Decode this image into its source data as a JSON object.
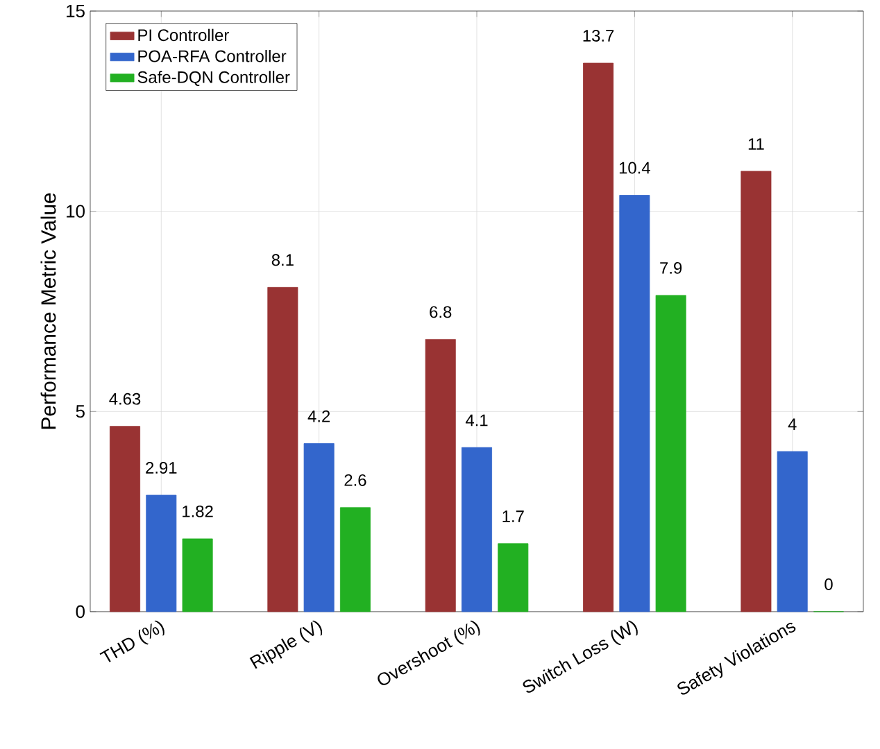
{
  "chart_data": {
    "type": "bar",
    "ylabel": "Performance Metric Value",
    "categories": [
      "THD (%)",
      "Ripple (V)",
      "Overshoot (%)",
      "Switch Loss (W)",
      "Safety Violations"
    ],
    "series": [
      {
        "name": "PI Controller",
        "color": "#993333",
        "values": [
          4.63,
          8.1,
          6.8,
          13.7,
          11
        ]
      },
      {
        "name": "POA-RFA Controller",
        "color": "#3366cc",
        "values": [
          2.91,
          4.2,
          4.1,
          10.4,
          4
        ]
      },
      {
        "name": "Safe-DQN Controller",
        "color": "#22b022",
        "values": [
          1.82,
          2.6,
          1.7,
          7.9,
          0
        ]
      }
    ],
    "ylim": [
      0,
      15
    ],
    "yticks": [
      0,
      5,
      10,
      15
    ],
    "grid": true,
    "legend": "top left",
    "data_labels": true
  }
}
